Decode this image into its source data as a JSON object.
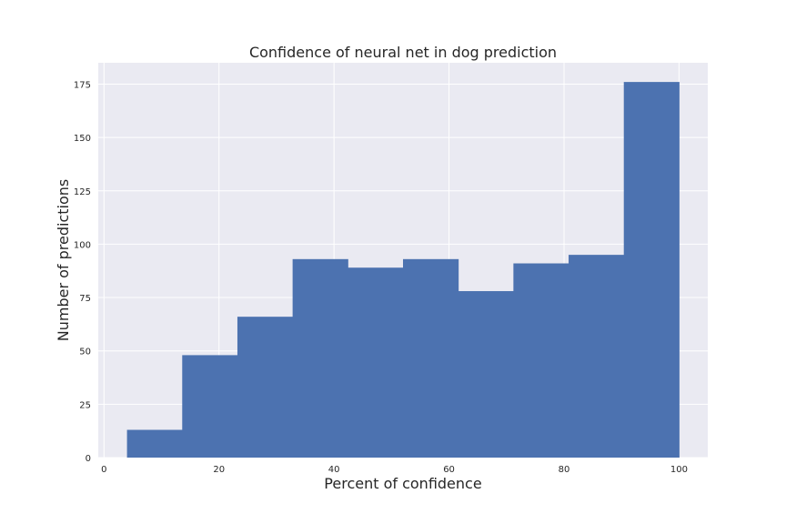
{
  "chart_data": {
    "type": "bar",
    "title": "Confidence of neural net in dog prediction",
    "xlabel": "Percent of confidence",
    "ylabel": "Number of predictions",
    "xlim": [
      -1,
      105
    ],
    "ylim": [
      0,
      185
    ],
    "x_ticks": [
      0,
      20,
      40,
      60,
      80,
      100
    ],
    "y_ticks": [
      0,
      25,
      50,
      75,
      100,
      125,
      150,
      175
    ],
    "grid": true,
    "background": "#eaeaf2",
    "bar_color": "#4c72b0",
    "bins": [
      {
        "start": 4,
        "end": 13.6,
        "count": 13
      },
      {
        "start": 13.6,
        "end": 23.2,
        "count": 48
      },
      {
        "start": 23.2,
        "end": 32.8,
        "count": 66
      },
      {
        "start": 32.8,
        "end": 42.4,
        "count": 93
      },
      {
        "start": 42.4,
        "end": 52.0,
        "count": 89
      },
      {
        "start": 52.0,
        "end": 61.6,
        "count": 93
      },
      {
        "start": 61.6,
        "end": 71.2,
        "count": 78
      },
      {
        "start": 71.2,
        "end": 80.8,
        "count": 91
      },
      {
        "start": 80.8,
        "end": 90.4,
        "count": 95
      },
      {
        "start": 90.4,
        "end": 100,
        "count": 176
      }
    ]
  }
}
